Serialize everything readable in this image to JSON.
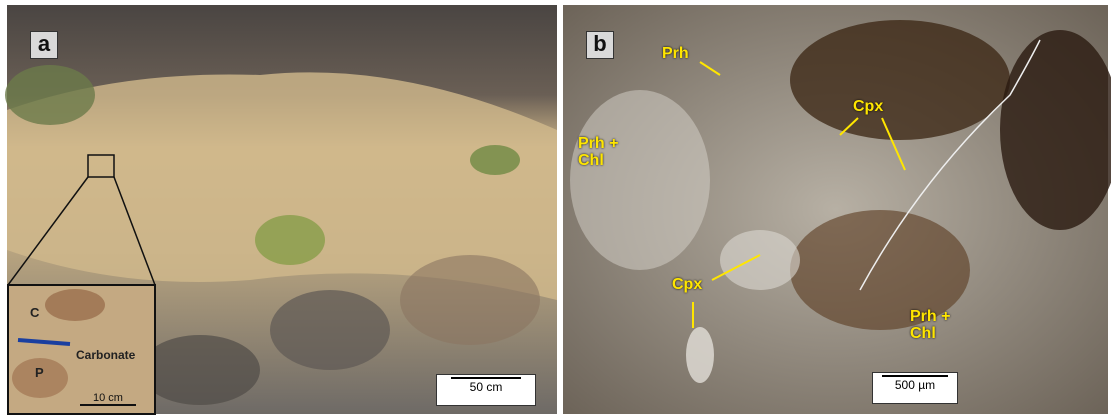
{
  "panels": [
    {
      "label": "a",
      "scale_bar": "50 cm",
      "inset": {
        "labels": [
          "C",
          "P",
          "Carbonate"
        ],
        "scale_bar": "10 cm"
      }
    },
    {
      "label": "b",
      "scale_bar": "500 µm",
      "annotations": [
        "Prh",
        "Prh + Chl",
        "Cpx",
        "Cpx",
        "Prh + Chl"
      ]
    }
  ]
}
